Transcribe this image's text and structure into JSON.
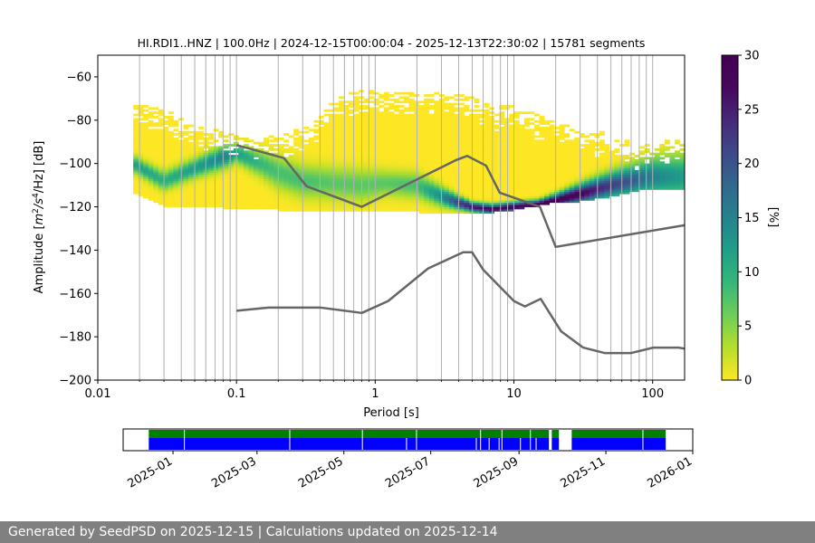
{
  "chart_data": [
    {
      "type": "heatmap",
      "title": "HI.RDI1..HNZ | 100.0Hz | 2024-12-15T00:00:04 - 2025-12-13T22:30:02 | 15781 segments",
      "xlabel": "Period [s]",
      "ylabel_parts": {
        "pre": "Amplitude [",
        "m": "m",
        "sup1": "2",
        "mid": "/",
        "s": "s",
        "sup2": "4",
        "post": "/Hz] [dB]"
      },
      "xscale": "log",
      "xlim": [
        0.01,
        170
      ],
      "ylim": [
        -200,
        -50
      ],
      "x_ticks": [
        0.01,
        0.1,
        1,
        10,
        100
      ],
      "x_tick_labels": [
        "0.01",
        "0.1",
        "1",
        "10",
        "100"
      ],
      "y_ticks": [
        -200,
        -180,
        -160,
        -140,
        -120,
        -100,
        -80,
        -60
      ],
      "y_tick_labels": [
        "−200",
        "−180",
        "−160",
        "−140",
        "−120",
        "−100",
        "−80",
        "−60"
      ],
      "grid": "vertical log gridlines",
      "colormap": "viridis_r",
      "colors": {
        "low": "#fde725",
        "mid": "#21918c",
        "high": "#440154",
        "noise_model": "#666666",
        "grid": "#b0b0b0"
      },
      "density_band": {
        "period": [
          0.018,
          0.03,
          0.05,
          0.08,
          0.1,
          0.15,
          0.2,
          0.3,
          0.5,
          0.8,
          1.2,
          2,
          3,
          4,
          5,
          7,
          10,
          15,
          20,
          30,
          50,
          80,
          100,
          170
        ],
        "upper_db": [
          -73,
          -75,
          -83,
          -85,
          -88,
          -87,
          -87,
          -84,
          -70,
          -66,
          -68,
          -66,
          -66,
          -68,
          -70,
          -74,
          -73,
          -78,
          -80,
          -85,
          -86,
          -93,
          -91,
          -88
        ],
        "lower_db": [
          -114,
          -120,
          -120,
          -121,
          -121,
          -121,
          -122,
          -122,
          -122,
          -122,
          -122,
          -123,
          -123,
          -123,
          -123,
          -123,
          -122,
          -120,
          -118,
          -118,
          -116,
          -113,
          -112,
          -113
        ],
        "mode_db": [
          -100,
          -108,
          -102,
          -97,
          -95,
          -100,
          -104,
          -108,
          -109,
          -110,
          -109,
          -110,
          -115,
          -118,
          -120,
          -121,
          -120,
          -119,
          -117,
          -114,
          -110,
          -107,
          -106,
          -106
        ],
        "spread_db": [
          2.5,
          3,
          3,
          3.5,
          3,
          4,
          5,
          5,
          5,
          5,
          4,
          4,
          3,
          2,
          1.5,
          1.5,
          1.5,
          1.5,
          2,
          3,
          4,
          5,
          6,
          7
        ],
        "peak_percent": [
          12,
          10,
          12,
          15,
          12,
          9,
          8,
          8,
          7,
          7,
          7,
          8,
          14,
          22,
          26,
          28,
          28,
          30,
          30,
          28,
          22,
          18,
          15,
          12
        ]
      },
      "series": [
        {
          "name": "",
          "color": "#666666",
          "x": [
            0.1,
            0.22,
            0.32,
            0.8,
            3.8,
            4.6,
            6.3,
            7.9,
            15.4,
            20,
            170
          ],
          "y": [
            -91.5,
            -97.5,
            -110.5,
            -120,
            -98.5,
            -96.5,
            -101,
            -113.5,
            -120,
            -138.5,
            -128.5
          ]
        },
        {
          "name": "",
          "color": "#666666",
          "x": [
            0.1,
            0.17,
            0.4,
            0.8,
            1.24,
            2.4,
            4.3,
            5,
            6,
            10,
            12,
            15.6,
            21.9,
            31.6,
            45,
            70,
            101,
            154,
            170
          ],
          "y": [
            -168,
            -166.5,
            -166.5,
            -169,
            -163.5,
            -148.5,
            -141,
            -141,
            -149,
            -163.5,
            -166,
            -162.5,
            -177.5,
            -185,
            -187.5,
            -187.5,
            -185,
            -185,
            -185.5
          ]
        }
      ]
    },
    {
      "type": "timeline",
      "x_tick_labels": [
        "2025-01",
        "2025-03",
        "2025-05",
        "2025-07",
        "2025-09",
        "2025-11",
        "2026-01"
      ],
      "x_tick_dates": [
        "2025-01-01",
        "2025-03-01",
        "2025-05-01",
        "2025-07-01",
        "2025-09-01",
        "2025-11-01",
        "2026-01-01"
      ],
      "xlim": [
        "2024-11-27",
        "2026-01-01"
      ],
      "colors": {
        "availability": "#008000",
        "used": "#0000ff"
      },
      "coverage": {
        "start": "2024-12-15",
        "end": "2025-12-13",
        "gaps": [
          [
            "2025-09-22",
            "2025-09-24"
          ],
          [
            "2025-09-29",
            "2025-10-08"
          ]
        ]
      },
      "gap_markers": [
        {
          "date": "2025-01-09",
          "tracks": "both"
        },
        {
          "date": "2025-03-24",
          "tracks": "both"
        },
        {
          "date": "2025-05-14",
          "tracks": "both"
        },
        {
          "date": "2025-06-14",
          "tracks": "used"
        },
        {
          "date": "2025-06-21",
          "tracks": "both"
        },
        {
          "date": "2025-08-02",
          "tracks": "used"
        },
        {
          "date": "2025-08-05",
          "tracks": "both"
        },
        {
          "date": "2025-08-11",
          "tracks": "used"
        },
        {
          "date": "2025-08-18",
          "tracks": "used"
        },
        {
          "date": "2025-08-20",
          "tracks": "both"
        },
        {
          "date": "2025-09-02",
          "tracks": "used"
        },
        {
          "date": "2025-09-09",
          "tracks": "both"
        },
        {
          "date": "2025-09-13",
          "tracks": "used"
        },
        {
          "date": "2025-11-27",
          "tracks": "both"
        }
      ]
    }
  ],
  "colorbar": {
    "label": "[%]",
    "vmin": 0,
    "vmax": 30,
    "ticks": [
      0,
      5,
      10,
      15,
      20,
      25,
      30
    ],
    "tick_labels": [
      "0",
      "5",
      "10",
      "15",
      "20",
      "25",
      "30"
    ]
  },
  "footer": {
    "text": "Generated by SeedPSD on 2025-12-15 | Calculations updated on 2025-12-14",
    "background": "#808080"
  }
}
